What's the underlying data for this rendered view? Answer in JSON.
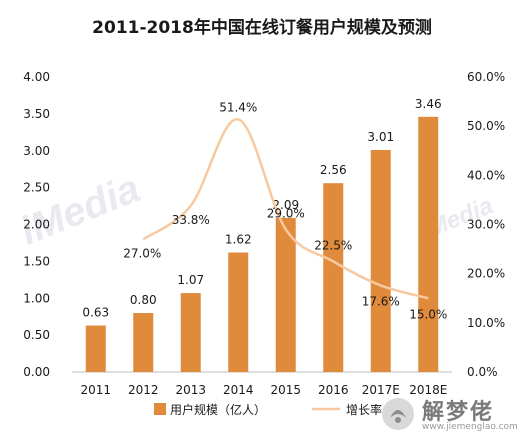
{
  "chart_data": {
    "type": "bar",
    "title": "2011-2018年中国在线订餐用户规模及预测",
    "categories": [
      "2011",
      "2012",
      "2013",
      "2014",
      "2015",
      "2016",
      "2017E",
      "2018E"
    ],
    "series": [
      {
        "name": "用户规模（亿人）",
        "type": "bar",
        "axis": "left",
        "values": [
          0.63,
          0.8,
          1.07,
          1.62,
          2.09,
          2.56,
          3.01,
          3.46
        ],
        "labels": [
          "0.63",
          "0.80",
          "1.07",
          "1.62",
          "2.09",
          "2.56",
          "3.01",
          "3.46"
        ]
      },
      {
        "name": "增长率",
        "type": "line",
        "axis": "right",
        "values": [
          null,
          27.0,
          33.8,
          51.4,
          29.0,
          22.5,
          17.6,
          15.0
        ],
        "labels": [
          null,
          "27.0%",
          "33.8%",
          "51.4%",
          "29.0%",
          "22.5%",
          "17.6%",
          "15.0%"
        ]
      }
    ],
    "y_left": {
      "min": 0,
      "max": 4.0,
      "ticks": [
        "0.00",
        "0.50",
        "1.00",
        "1.50",
        "2.00",
        "2.50",
        "3.00",
        "3.50",
        "4.00"
      ]
    },
    "y_right": {
      "min": 0,
      "max": 60.0,
      "ticks": [
        "0.0%",
        "10.0%",
        "20.0%",
        "30.0%",
        "40.0%",
        "50.0%",
        "60.0%"
      ]
    },
    "grid": false,
    "legend_position": "bottom",
    "colors": {
      "bar": "#E08A3C",
      "line": "#F8C9A0",
      "text": "#1a1a1a",
      "axis": "#bfbfbf"
    }
  },
  "watermark": {
    "text": "iMedia",
    "site_name": "解梦佬",
    "site_url": "www.jiemenglao.com"
  }
}
